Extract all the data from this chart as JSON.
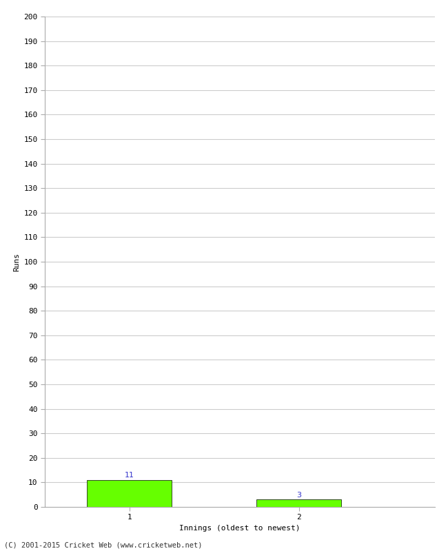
{
  "xlabel": "Innings (oldest to newest)",
  "ylabel": "Runs",
  "categories": [
    1,
    2
  ],
  "values": [
    11,
    3
  ],
  "bar_color": "#66ff00",
  "bar_edgecolor": "#000000",
  "value_labels": [
    11,
    3
  ],
  "value_label_color": "#3333cc",
  "ylim": [
    0,
    200
  ],
  "ytick_step": 10,
  "background_color": "#ffffff",
  "grid_color": "#cccccc",
  "footer": "(C) 2001-2015 Cricket Web (www.cricketweb.net)"
}
